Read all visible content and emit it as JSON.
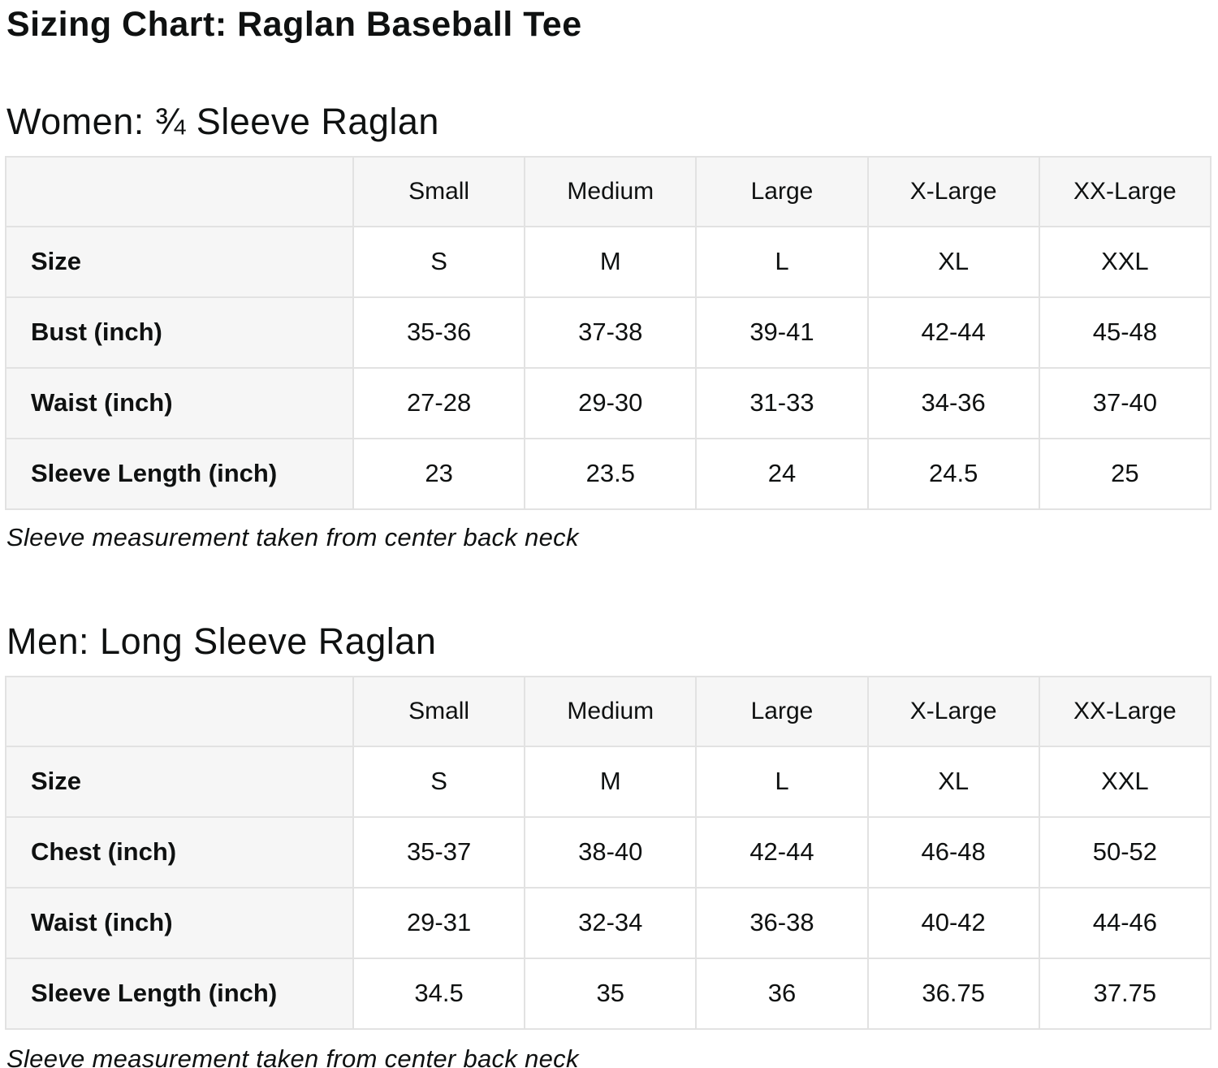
{
  "page": {
    "title": "Sizing Chart: Raglan Baseball Tee"
  },
  "colors": {
    "text": "#0f1111",
    "table_border": "#e2e2e2",
    "shaded_cell_bg": "#f6f6f6",
    "data_cell_bg": "#ffffff",
    "page_bg": "#ffffff"
  },
  "sections": [
    {
      "heading": "Women: ¾ Sleeve Raglan",
      "note": "Sleeve measurement taken from center back neck",
      "table": {
        "column_headers": [
          "",
          "Small",
          "Medium",
          "Large",
          "X-Large",
          "XX-Large"
        ],
        "rows": [
          {
            "label": "Size",
            "values": [
              "S",
              "M",
              "L",
              "XL",
              "XXL"
            ]
          },
          {
            "label": "Bust (inch)",
            "values": [
              "35-36",
              "37-38",
              "39-41",
              "42-44",
              "45-48"
            ]
          },
          {
            "label": "Waist (inch)",
            "values": [
              "27-28",
              "29-30",
              "31-33",
              "34-36",
              "37-40"
            ]
          },
          {
            "label": "Sleeve Length (inch)",
            "values": [
              "23",
              "23.5",
              "24",
              "24.5",
              "25"
            ]
          }
        ]
      }
    },
    {
      "heading": "Men: Long Sleeve Raglan",
      "note": "Sleeve measurement taken from center back neck",
      "table": {
        "column_headers": [
          "",
          "Small",
          "Medium",
          "Large",
          "X-Large",
          "XX-Large"
        ],
        "rows": [
          {
            "label": "Size",
            "values": [
              "S",
              "M",
              "L",
              "XL",
              "XXL"
            ]
          },
          {
            "label": "Chest (inch)",
            "values": [
              "35-37",
              "38-40",
              "42-44",
              "46-48",
              "50-52"
            ]
          },
          {
            "label": "Waist (inch)",
            "values": [
              "29-31",
              "32-34",
              "36-38",
              "40-42",
              "44-46"
            ]
          },
          {
            "label": "Sleeve Length (inch)",
            "values": [
              "34.5",
              "35",
              "36",
              "36.75",
              "37.75"
            ]
          }
        ]
      }
    }
  ]
}
